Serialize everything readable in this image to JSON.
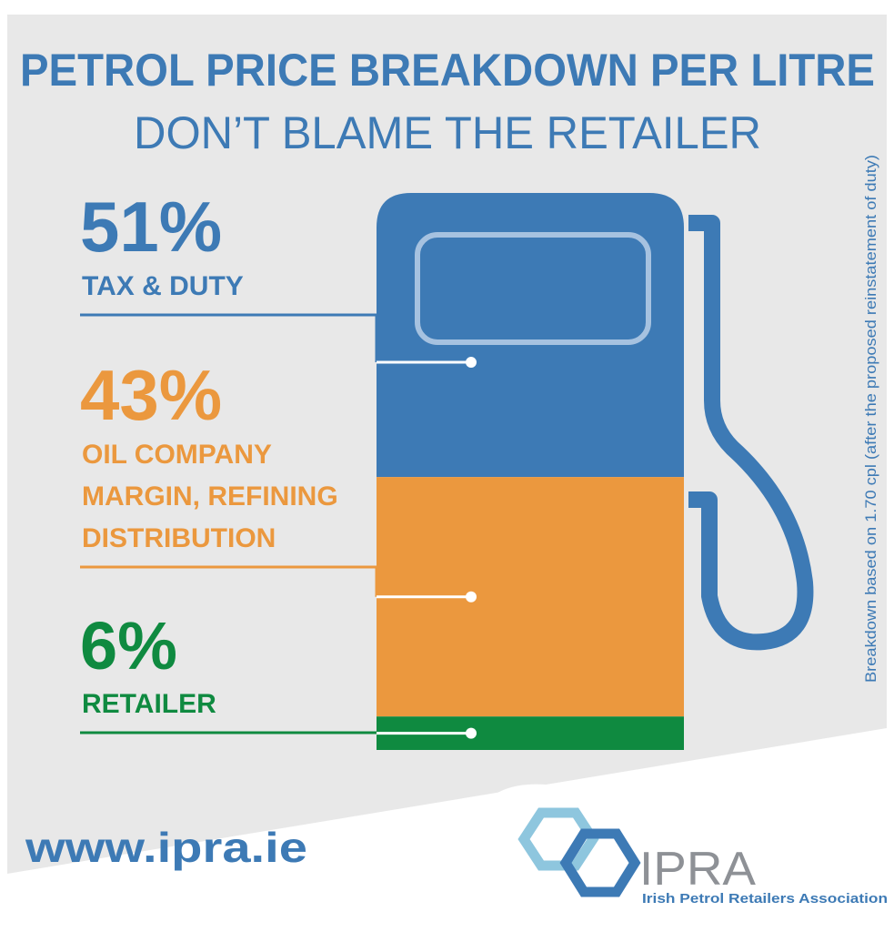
{
  "title": "PETROL PRICE BREAKDOWN PER LITRE",
  "subtitle": "DON’T BLAME THE RETAILER",
  "side_note": "Breakdown based on 1.70 cpl (after the proposed reinstatement of duty)",
  "website": "www.ipra.ie",
  "logo": {
    "name": "IPRA",
    "full_name": "Irish Petrol Retailers Association"
  },
  "colors": {
    "background": "#e8e8e8",
    "blue": "#3d7ab5",
    "orange": "#eb983e",
    "green": "#0f8a40"
  },
  "chart_data": {
    "type": "bar",
    "stacked": true,
    "categories": [
      "Tax & Duty",
      "Oil Company Margin, Refining Distribution",
      "Retailer"
    ],
    "series": [
      {
        "percent_label": "51%",
        "label_lines": [
          "TAX & DUTY"
        ],
        "value": 51,
        "color": "#3d7ab5"
      },
      {
        "percent_label": "43%",
        "label_lines": [
          "OIL COMPANY",
          "MARGIN, REFINING",
          "DISTRIBUTION"
        ],
        "value": 43,
        "color": "#eb983e"
      },
      {
        "percent_label": "6%",
        "label_lines": [
          "RETAILER"
        ],
        "value": 6,
        "color": "#0f8a40"
      }
    ],
    "title": "PETROL PRICE BREAKDOWN PER LITRE",
    "unit": "%"
  }
}
